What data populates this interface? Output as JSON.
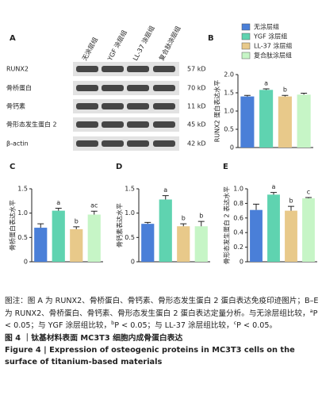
{
  "panel_a": {
    "label": "A",
    "rows": [
      {
        "name": "RUNX2",
        "size": "57 kD"
      },
      {
        "name": "骨桥蛋白",
        "size": "70 kD"
      },
      {
        "name": "骨钙素",
        "size": "11 kD"
      },
      {
        "name": "骨形态发生蛋白 2",
        "size": "45 kD"
      },
      {
        "name": "β-actin",
        "size": "42 kD"
      }
    ]
  },
  "groups": [
    {
      "name": "无涂层组",
      "color": "#4a7fd8"
    },
    {
      "name": "YGF 涂层组",
      "color": "#5fd3b0"
    },
    {
      "name": "LL-37 涂层组",
      "color": "#e8c98a"
    },
    {
      "name": "复合肽涂层组",
      "color": "#c6f5c6"
    }
  ],
  "chart_data": [
    {
      "type": "bar",
      "panel": "B",
      "ylabel": "RUNX2 蛋白表达水平",
      "ylim": [
        0,
        2
      ],
      "yticks": [
        0,
        0.5,
        {
          "value": 1,
          "label": "1.0"
        },
        1.5,
        {
          "value": 2,
          "label": "2.0"
        }
      ],
      "values": [
        1.4,
        1.58,
        1.4,
        1.45
      ],
      "errors": [
        0.03,
        0.03,
        0.03,
        0.04
      ],
      "annotations": [
        null,
        "a",
        "b",
        null
      ]
    },
    {
      "type": "bar",
      "panel": "C",
      "ylabel": "骨桥蛋白表达水平",
      "ylim": [
        0,
        1.5
      ],
      "yticks": [
        0,
        0.5,
        {
          "value": 1,
          "label": "1.0"
        },
        1.5
      ],
      "values": [
        0.7,
        1.05,
        0.67,
        0.97
      ],
      "errors": [
        0.08,
        0.05,
        0.05,
        0.07
      ],
      "annotations": [
        null,
        "a",
        "b",
        "ac"
      ]
    },
    {
      "type": "bar",
      "panel": "D",
      "ylabel": "骨钙素表达水平",
      "ylim": [
        0,
        1.5
      ],
      "yticks": [
        0,
        0.5,
        {
          "value": 1,
          "label": "1.0"
        },
        1.5
      ],
      "values": [
        0.78,
        1.28,
        0.73,
        0.73
      ],
      "errors": [
        0.03,
        0.08,
        0.05,
        0.1
      ],
      "annotations": [
        null,
        "a",
        "b",
        "b"
      ]
    },
    {
      "type": "bar",
      "panel": "E",
      "ylabel": "骨形态发生蛋白 2 表达水平",
      "ylim": [
        0,
        1
      ],
      "yticks": [
        0,
        0.2,
        0.4,
        0.6,
        0.8,
        {
          "value": 1,
          "label": "1.0"
        }
      ],
      "values": [
        0.71,
        0.92,
        0.7,
        0.87
      ],
      "errors": [
        0.08,
        0.03,
        0.06,
        0.01
      ],
      "annotations": [
        null,
        "a",
        "b",
        "c"
      ]
    }
  ],
  "caption": {
    "note": [
      {
        "text": "图注：图 A 为 RUNX2、骨桥蛋白、骨钙素、骨形态发生蛋白 2 蛋白表达免疫印迹图片；B–E 为 RUNX2、骨桥蛋白、骨钙素、骨形态发生蛋白 2 蛋白表达定量分析。与无涂层组比较，"
      },
      {
        "sup": "a"
      },
      {
        "text": "P < 0.05；与 YGF 涂层组比较，"
      },
      {
        "sup": "b"
      },
      {
        "text": "P < 0.05；与 LL-37 涂层组比较，"
      },
      {
        "sup": "c"
      },
      {
        "text": "P < 0.05。"
      }
    ],
    "title_cn": "图 4 ｜钛基材料表面 MC3T3 细胞内成骨蛋白表达",
    "title_en": "Figure 4 | Expression of osteogenic proteins in MC3T3 cells on the surface of titanium-based materials"
  }
}
